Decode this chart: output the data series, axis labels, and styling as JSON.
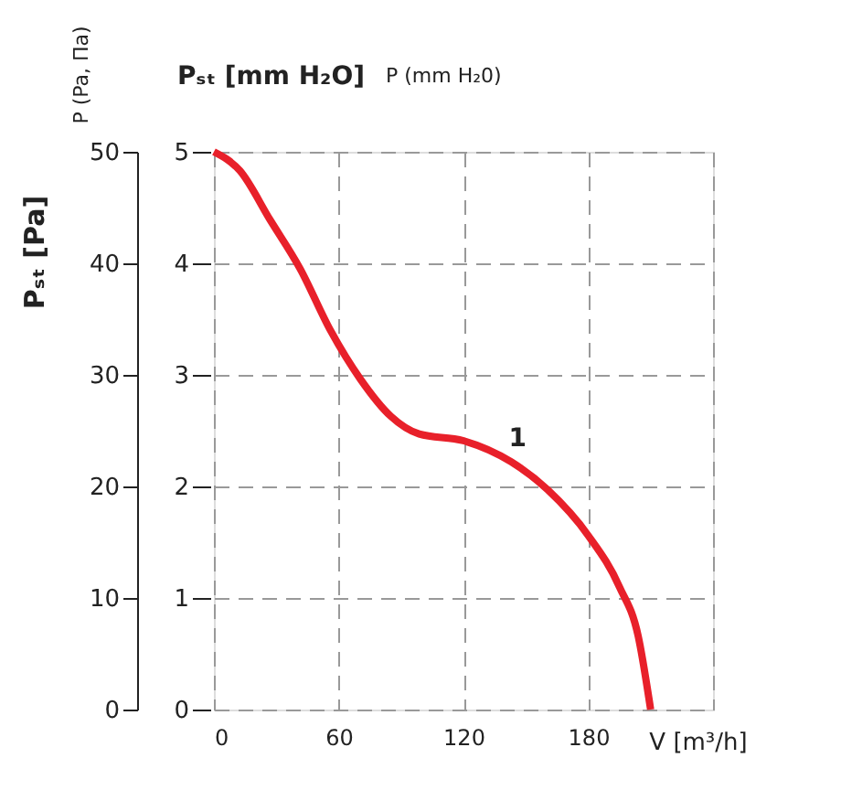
{
  "chart_data": {
    "type": "line",
    "xlabel": "V [m³/h]",
    "ylabel": "Pₛₜ [Pa]",
    "y2label": "Pₛₜ [mm H₂O]",
    "annotations": [
      "P (Pa, Па)",
      "P (mm H₂0)",
      {
        "text": "1",
        "x": 146,
        "y": 22
      }
    ],
    "xlim": [
      0,
      240
    ],
    "xticks": [
      0,
      60,
      120,
      180,
      {
        "value": 240,
        "label": null
      }
    ],
    "ylim": [
      0,
      50
    ],
    "yticks": [
      0,
      10,
      20,
      30,
      40,
      50
    ],
    "y2lim": [
      0,
      5
    ],
    "y2ticks": [
      0,
      1,
      2,
      3,
      4,
      5
    ],
    "grid": true,
    "line_style": "solid",
    "series": [
      {
        "color": "#e8202a",
        "x": [
          0,
          12.5,
          27,
          41.5,
          56,
          70.5,
          85,
          98.7,
          120,
          143,
          160.5,
          180,
          195,
          204,
          210
        ],
        "values": [
          50,
          48.3,
          43.9,
          39.5,
          34,
          29.6,
          26.3,
          24.7,
          24.1,
          22.2,
          19.7,
          15.6,
          11,
          6.6,
          0
        ]
      }
    ]
  }
}
